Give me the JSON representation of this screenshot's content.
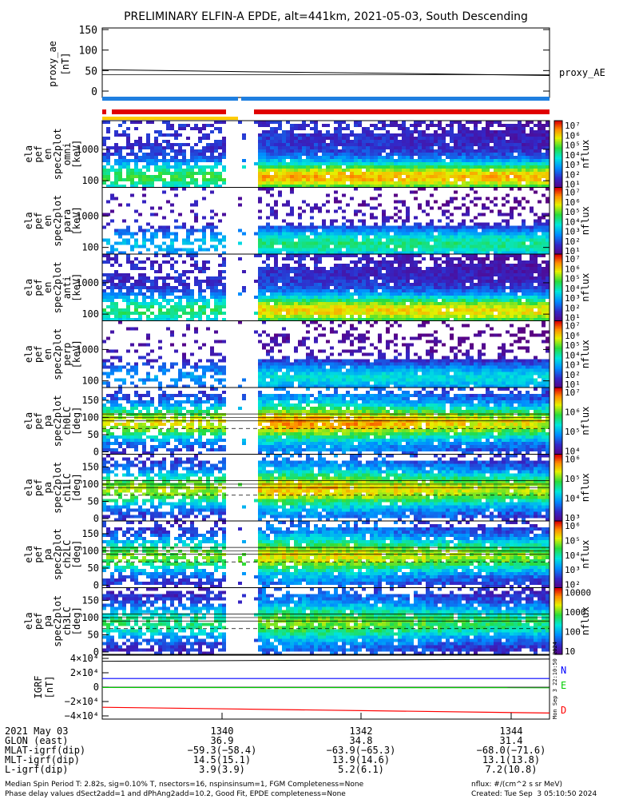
{
  "title": "PRELIMINARY ELFIN-A EPDE, alt=441km, 2021-05-03, South Descending",
  "panels": {
    "proxy": {
      "ylabel": [
        "proxy_ae",
        "[nT]"
      ],
      "yticks": [
        "150",
        "100",
        "50",
        "0"
      ],
      "legend": "proxy_AE"
    },
    "spec_labels": [
      [
        "ela",
        "pef",
        "en",
        "spec2plot",
        "omni",
        "[keV]"
      ],
      [
        "ela",
        "pef",
        "en",
        "spec2plot",
        "para",
        "[keV]"
      ],
      [
        "ela",
        "pef",
        "en",
        "spec2plot",
        "anti",
        "[keV]"
      ],
      [
        "ela",
        "pef",
        "en",
        "spec2plot",
        "perp",
        "[keV]"
      ]
    ],
    "spec_yticks": [
      "1000",
      "100"
    ],
    "pa_labels": [
      [
        "ela",
        "pef",
        "pa",
        "spec2plot",
        "ch0LC",
        "[deg]"
      ],
      [
        "ela",
        "pef",
        "pa",
        "spec2plot",
        "ch1LC",
        "[deg]"
      ],
      [
        "ela",
        "pef",
        "pa",
        "spec2plot",
        "ch2LC",
        "[deg]"
      ],
      [
        "ela",
        "pef",
        "pa",
        "spec2plot",
        "ch3LC",
        "[deg]"
      ]
    ],
    "pa_yticks": [
      "150",
      "100",
      "50",
      "0"
    ],
    "colorbar_title": "nflux",
    "colorbar_ticks_spec": [
      "10⁷",
      "10⁶",
      "10⁵",
      "10⁴",
      "10³",
      "10²",
      "10¹"
    ],
    "colorbar_ticks_pa": [
      [
        "10⁷",
        "10⁶",
        "10⁵",
        "10⁴"
      ],
      [
        "10⁶",
        "10⁵",
        "10⁴",
        "10³"
      ],
      [
        "10⁶",
        "10⁵",
        "10⁴",
        "10³",
        "10²"
      ],
      [
        "10000",
        "1000",
        "100",
        "10"
      ]
    ],
    "igrf": {
      "ylabel": [
        "IGRF",
        "[nT]"
      ],
      "yticks": [
        "4×10⁴",
        "2×10⁴",
        "0",
        "−2×10⁴",
        "−4×10⁴"
      ],
      "legend": [
        "N",
        "E",
        "D"
      ],
      "legend_colors": [
        "#0000ff",
        "#00cc00",
        "#ff0000"
      ]
    }
  },
  "side_stamp": "Mon Sep  3 22:10:50 2024",
  "xaxis": {
    "row_labels": [
      "2021 May 03",
      "GLON (east)",
      "MLAT-igrf(dip)",
      "MLT-igrf(dip)",
      "L-igrf(dip)"
    ],
    "ticks": [
      {
        "time": "1340",
        "glon": "36.9",
        "mlat": "−59.3(−58.4)",
        "mlt": "14.5(15.1)",
        "l": "3.9(3.9)"
      },
      {
        "time": "1342",
        "glon": "34.8",
        "mlat": "−63.9(−65.3)",
        "mlt": "13.9(14.6)",
        "l": "5.2(6.1)"
      },
      {
        "time": "1344",
        "glon": "31.4",
        "mlat": "−68.0(−71.6)",
        "mlt": "13.1(13.8)",
        "l": "7.2(10.8)"
      }
    ]
  },
  "footer": {
    "line1": "Median Spin Period T: 2.82s, sig=0.10% T, nsectors=16, nspinsinsum=1, FGM Completeness=None",
    "line2": "Phase delay values dSect2add=1 and dPhAng2add=10.2, Good Fit, EPDE completeness=None",
    "units": "nflux: #/(cm^2 s sr MeV)",
    "created": "Created: Tue Sep  3 05:10:50 2024"
  },
  "chart_data": [
    {
      "type": "line",
      "title": "PRELIMINARY ELFIN-A EPDE, alt=441km, 2021-05-03, South Descending",
      "ylabel": "proxy_ae [nT]",
      "ylim": [
        0,
        150
      ],
      "x_range_utc": [
        "13:38:10",
        "13:44:50"
      ],
      "series": [
        {
          "name": "proxy_AE",
          "x": [
            "13:38:10",
            "13:40:00",
            "13:42:00",
            "13:44:50"
          ],
          "values": [
            52,
            47,
            43,
            38
          ]
        }
      ]
    },
    {
      "type": "heatmap",
      "panels": [
        "omni",
        "para",
        "anti",
        "perp"
      ],
      "ylabel": "energy [keV]",
      "y_scale": "log",
      "ylim": [
        60,
        7000
      ],
      "colorbar": {
        "label": "nflux",
        "scale": "log",
        "range": [
          10,
          10000000
        ]
      }
    },
    {
      "type": "heatmap",
      "panels": [
        "ch0LC",
        "ch1LC",
        "ch2LC",
        "ch3LC"
      ],
      "ylabel": "pitch angle [deg]",
      "ylim": [
        0,
        180
      ],
      "colorbar": {
        "label": "nflux",
        "scale": "log"
      }
    },
    {
      "type": "line",
      "ylabel": "IGRF [nT]",
      "ylim": [
        -45000,
        45000
      ],
      "x_range_utc": [
        "13:38:10",
        "13:44:50"
      ],
      "series": [
        {
          "name": "N",
          "x": [
            "13:38:10",
            "13:44:50"
          ],
          "values": [
            12000,
            12000
          ]
        },
        {
          "name": "E",
          "x": [
            "13:38:10",
            "13:44:50"
          ],
          "values": [
            -500,
            -800
          ]
        },
        {
          "name": "D",
          "x": [
            "13:38:10",
            "13:44:50"
          ],
          "values": [
            -28000,
            -36000
          ]
        }
      ]
    }
  ]
}
